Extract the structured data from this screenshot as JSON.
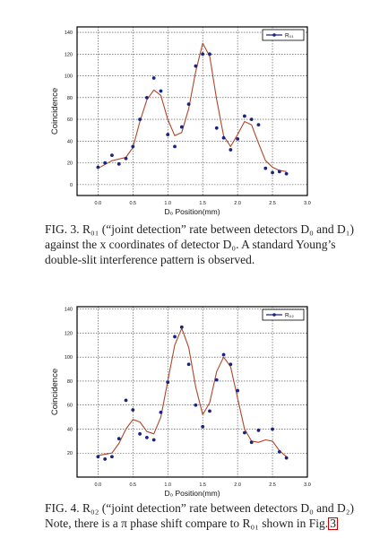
{
  "chart_data": [
    {
      "type": "scatter",
      "fit_line": true,
      "xlabel": "D₀ Position(mm)",
      "ylabel": "Coincidence",
      "xlim": [
        -0.3,
        3.0
      ],
      "ylim": [
        -10,
        145
      ],
      "x_ticks": [
        "0.0",
        "0.5",
        "1.0",
        "1.5",
        "2.0",
        "2.5",
        "3.0"
      ],
      "y_ticks": [
        "0",
        "20",
        "40",
        "60",
        "80",
        "100",
        "120",
        "140"
      ],
      "grid": true,
      "legend": "top-right",
      "series": [
        {
          "name": "R₀₁",
          "color": "#1a237e",
          "line_color": "#b0452a",
          "points": [
            [
              0.0,
              16
            ],
            [
              0.1,
              20
            ],
            [
              0.2,
              27
            ],
            [
              0.3,
              19
            ],
            [
              0.4,
              24
            ],
            [
              0.5,
              35
            ],
            [
              0.6,
              60
            ],
            [
              0.7,
              80
            ],
            [
              0.8,
              98
            ],
            [
              0.9,
              86
            ],
            [
              1.0,
              46
            ],
            [
              1.1,
              35
            ],
            [
              1.2,
              53
            ],
            [
              1.3,
              74
            ],
            [
              1.4,
              109
            ],
            [
              1.5,
              120
            ],
            [
              1.6,
              120
            ],
            [
              1.7,
              52
            ],
            [
              1.8,
              43
            ],
            [
              1.9,
              32
            ],
            [
              2.0,
              42
            ],
            [
              2.1,
              63
            ],
            [
              2.2,
              60
            ],
            [
              2.3,
              55
            ],
            [
              2.4,
              15
            ],
            [
              2.5,
              11
            ],
            [
              2.6,
              12
            ],
            [
              2.7,
              10
            ]
          ],
          "fit": [
            [
              0.0,
              15
            ],
            [
              0.2,
              22
            ],
            [
              0.4,
              25
            ],
            [
              0.5,
              34
            ],
            [
              0.6,
              58
            ],
            [
              0.7,
              78
            ],
            [
              0.8,
              87
            ],
            [
              0.9,
              82
            ],
            [
              1.0,
              60
            ],
            [
              1.1,
              45
            ],
            [
              1.2,
              48
            ],
            [
              1.3,
              70
            ],
            [
              1.4,
              104
            ],
            [
              1.5,
              130
            ],
            [
              1.6,
              118
            ],
            [
              1.7,
              78
            ],
            [
              1.8,
              45
            ],
            [
              1.9,
              35
            ],
            [
              2.0,
              46
            ],
            [
              2.1,
              58
            ],
            [
              2.2,
              55
            ],
            [
              2.3,
              38
            ],
            [
              2.4,
              22
            ],
            [
              2.5,
              16
            ],
            [
              2.6,
              13
            ],
            [
              2.7,
              12
            ]
          ]
        }
      ]
    },
    {
      "type": "scatter",
      "fit_line": true,
      "xlabel": "D₀ Position(mm)",
      "ylabel": "Coincidence",
      "xlim": [
        -0.3,
        3.0
      ],
      "ylim": [
        0,
        142
      ],
      "x_ticks": [
        "0.0",
        "0.5",
        "1.0",
        "1.5",
        "2.0",
        "2.5",
        "3.0"
      ],
      "y_ticks": [
        "20",
        "40",
        "60",
        "80",
        "100",
        "120",
        "140"
      ],
      "grid": true,
      "legend": "top-right",
      "series": [
        {
          "name": "R₀₂",
          "color": "#1a237e",
          "line_color": "#b0452a",
          "points": [
            [
              0.0,
              17
            ],
            [
              0.1,
              15
            ],
            [
              0.2,
              17
            ],
            [
              0.3,
              32
            ],
            [
              0.4,
              64
            ],
            [
              0.5,
              56
            ],
            [
              0.6,
              36
            ],
            [
              0.7,
              33
            ],
            [
              0.8,
              31
            ],
            [
              0.9,
              54
            ],
            [
              1.0,
              79
            ],
            [
              1.1,
              117
            ],
            [
              1.2,
              125
            ],
            [
              1.3,
              94
            ],
            [
              1.4,
              60
            ],
            [
              1.5,
              42
            ],
            [
              1.6,
              55
            ],
            [
              1.7,
              81
            ],
            [
              1.8,
              102
            ],
            [
              1.9,
              94
            ],
            [
              2.0,
              72
            ],
            [
              2.1,
              37
            ],
            [
              2.2,
              29
            ],
            [
              2.3,
              39
            ],
            [
              2.5,
              40
            ],
            [
              2.6,
              21
            ],
            [
              2.7,
              16
            ]
          ],
          "fit": [
            [
              0.0,
              18
            ],
            [
              0.2,
              20
            ],
            [
              0.3,
              28
            ],
            [
              0.4,
              40
            ],
            [
              0.5,
              48
            ],
            [
              0.6,
              46
            ],
            [
              0.7,
              38
            ],
            [
              0.8,
              36
            ],
            [
              0.9,
              50
            ],
            [
              1.0,
              80
            ],
            [
              1.1,
              110
            ],
            [
              1.2,
              124
            ],
            [
              1.3,
              108
            ],
            [
              1.4,
              75
            ],
            [
              1.5,
              52
            ],
            [
              1.6,
              62
            ],
            [
              1.7,
              88
            ],
            [
              1.8,
              100
            ],
            [
              1.9,
              92
            ],
            [
              2.0,
              66
            ],
            [
              2.1,
              40
            ],
            [
              2.2,
              30
            ],
            [
              2.3,
              29
            ],
            [
              2.4,
              31
            ],
            [
              2.5,
              30
            ],
            [
              2.6,
              22
            ],
            [
              2.7,
              17
            ]
          ]
        }
      ]
    }
  ],
  "captions": [
    {
      "lead": "FIG. 3.",
      "text": "R₀₁ (“joint detection” rate between detectors D₀ and D₁) against the x coordinates of detector D₀. A standard Young’s double-slit interference pattern is observed."
    },
    {
      "lead": "FIG. 4.",
      "text": "R₀₂ (“joint detection” rate between detectors D₀ and D₂) Note, there is a π phase shift compare to R₀₁ shown in Fig.",
      "ref": "3"
    }
  ]
}
